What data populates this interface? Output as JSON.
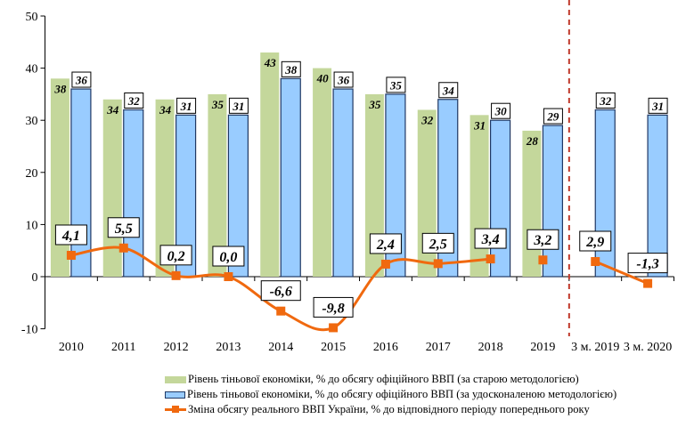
{
  "chart_data": {
    "type": "bar+line",
    "categories": [
      "2010",
      "2011",
      "2012",
      "2013",
      "2014",
      "2015",
      "2016",
      "2017",
      "2018",
      "2019",
      "3 м. 2019",
      "3 м. 2020"
    ],
    "ylim": [
      -10,
      50
    ],
    "yticks": [
      -10,
      0,
      10,
      20,
      30,
      40,
      50
    ],
    "grid": false,
    "legend_position": "bottom",
    "series": [
      {
        "name": "Рівень тіньової економіки, % до обсягу офіційного ВВП (за старою методологією)",
        "type": "bar",
        "color": "#c4d79b",
        "values": [
          38,
          34,
          34,
          35,
          43,
          40,
          35,
          32,
          31,
          28,
          null,
          null
        ],
        "labels": [
          "38",
          "34",
          "34",
          "35",
          "43",
          "40",
          "35",
          "32",
          "31",
          "28",
          null,
          null
        ]
      },
      {
        "name": "Рівень тіньової економіки, % до обсягу офіційного ВВП (за удосконаленою методологією)",
        "type": "bar",
        "color": "#99ccff",
        "values": [
          36,
          32,
          31,
          31,
          38,
          36,
          35,
          34,
          30,
          29,
          32,
          31
        ],
        "labels": [
          "36",
          "32",
          "31",
          "31",
          "38",
          "36",
          "35",
          "34",
          "30",
          "29",
          "32",
          "31"
        ]
      },
      {
        "name": "Зміна обсягу реального ВВП України, % до відповідного періоду попереднього року",
        "type": "line",
        "color": "#f0690f",
        "values": [
          4.1,
          5.5,
          0.2,
          0.0,
          -6.6,
          -9.8,
          2.4,
          2.5,
          3.4,
          3.2,
          2.9,
          -1.3
        ],
        "labels": [
          "4,1",
          "5,5",
          "0,2",
          "0,0",
          "-6,6",
          "-9,8",
          "2,4",
          "2,5",
          "3,4",
          "3,2",
          "2,9",
          "-1,3"
        ]
      }
    ],
    "separator_color": "#c0392b"
  }
}
